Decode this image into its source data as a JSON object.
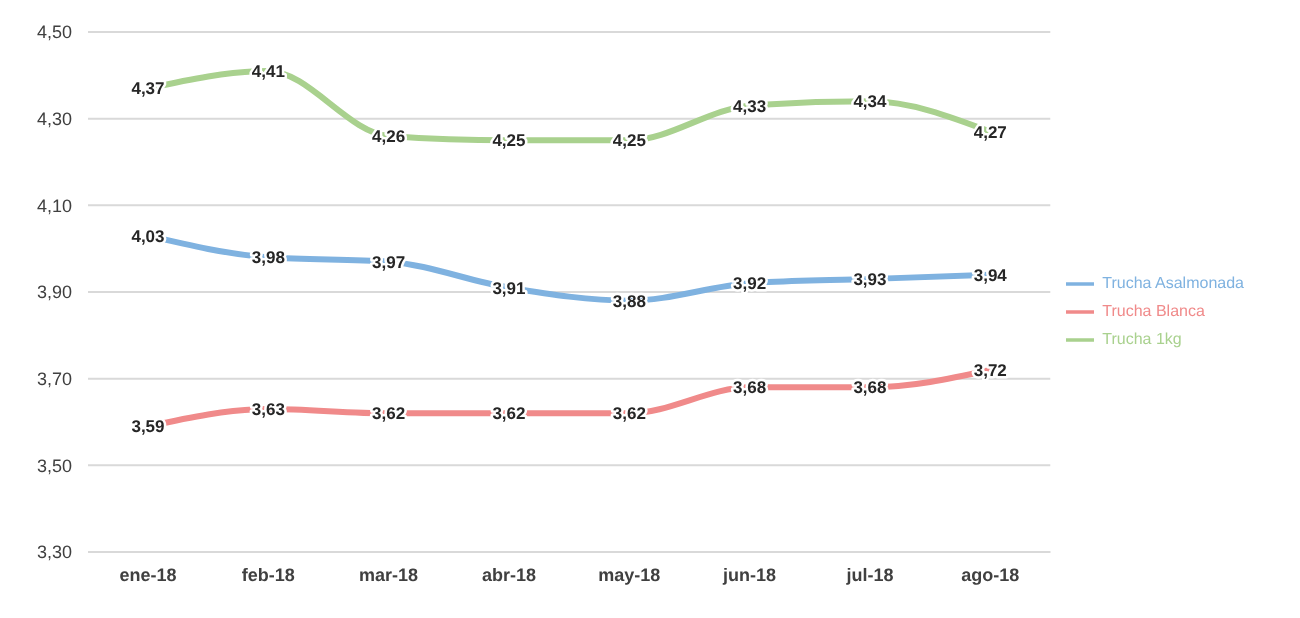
{
  "chart_data": {
    "type": "line",
    "categories": [
      "ene-18",
      "feb-18",
      "mar-18",
      "abr-18",
      "may-18",
      "jun-18",
      "jul-18",
      "ago-18"
    ],
    "series": [
      {
        "name": "Trucha Asalmonada",
        "color": "#7fb2e0",
        "values": [
          4.03,
          3.98,
          3.97,
          3.91,
          3.88,
          3.92,
          3.93,
          3.94
        ],
        "value_labels": [
          "4,03",
          "3,98",
          "3,97",
          "3,91",
          "3,88",
          "3,92",
          "3,93",
          "3,94"
        ]
      },
      {
        "name": "Trucha Blanca",
        "color": "#f08a8a",
        "values": [
          3.59,
          3.63,
          3.62,
          3.62,
          3.62,
          3.68,
          3.68,
          3.72
        ],
        "value_labels": [
          "3,59",
          "3,63",
          "3,62",
          "3,62",
          "3,62",
          "3,68",
          "3,68",
          "3,72"
        ]
      },
      {
        "name": "Trucha 1kg",
        "color": "#a9d18e",
        "values": [
          4.37,
          4.41,
          4.26,
          4.25,
          4.25,
          4.33,
          4.34,
          4.27
        ],
        "value_labels": [
          "4,37",
          "4,41",
          "4,26",
          "4,25",
          "4,25",
          "4,33",
          "4,34",
          "4,27"
        ]
      }
    ],
    "ylim": [
      3.3,
      4.5
    ],
    "yticks": [
      {
        "value": 3.3,
        "label": "3,30"
      },
      {
        "value": 3.5,
        "label": "3,50"
      },
      {
        "value": 3.7,
        "label": "3,70"
      },
      {
        "value": 3.9,
        "label": "3,90"
      },
      {
        "value": 4.1,
        "label": "4,10"
      },
      {
        "value": 4.3,
        "label": "4,30"
      },
      {
        "value": 4.5,
        "label": "4,50"
      }
    ],
    "grid": "y",
    "legend": "right",
    "marker": "none",
    "line_style": "solid"
  }
}
